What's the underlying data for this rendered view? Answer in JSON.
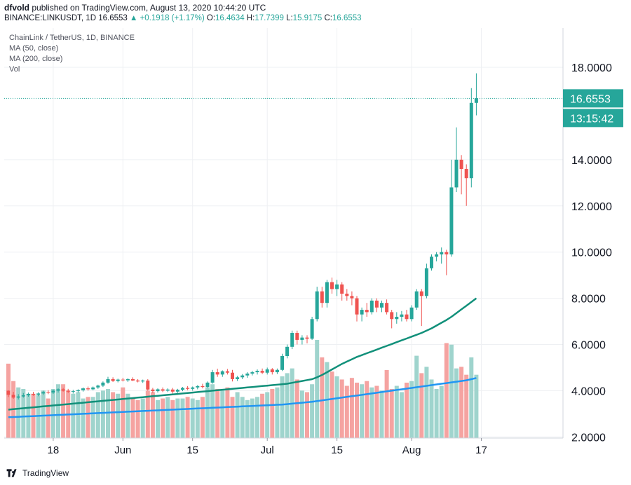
{
  "header": {
    "user": "dfvold",
    "published": "published on TradingView.com, August 13, 2020 10:44:20 UTC",
    "symbol": "BINANCE:LINKUSDT, 1D",
    "last": "16.6553",
    "change": "+0.1918 (+1.17%)",
    "o_label": "O:",
    "o": "16.4634",
    "h_label": "H:",
    "h": "17.7399",
    "l_label": "L:",
    "l": "15.9175",
    "c_label": "C:",
    "c": "16.6553"
  },
  "legend": {
    "title": "ChainLink / TetherUS, 1D, BINANCE",
    "ma50": "MA (50, close)",
    "ma200": "MA (200, close)",
    "vol": "Vol"
  },
  "price_label": "16.6553",
  "countdown": "13:15:42",
  "footer": {
    "brand": "TradingView"
  },
  "colors": {
    "up": "#26a69a",
    "down": "#ef5350",
    "vol_up": "#9fd4cd",
    "vol_down": "#f5a3a1",
    "ma50": "#11907a",
    "ma200": "#2196f3",
    "grid": "#eef0f3",
    "axis_text": "#131722"
  },
  "chart_data": {
    "type": "candlestick",
    "title": "ChainLink / TetherUS, 1D, BINANCE",
    "y_ticks": [
      "2.0000",
      "4.0000",
      "6.0000",
      "8.0000",
      "10.0000",
      "12.0000",
      "14.0000",
      "18.0000"
    ],
    "y_tick_values": [
      2,
      4,
      6,
      8,
      10,
      12,
      14,
      18
    ],
    "x_ticks": [
      "18",
      "Jun",
      "15",
      "Jul",
      "15",
      "Aug",
      "17"
    ],
    "x_tick_index": [
      9,
      23,
      37,
      52,
      66,
      81,
      95
    ],
    "ylim": [
      1.95,
      19.7
    ],
    "start_date": "2020-05-09",
    "candles": [
      [
        4.0,
        4.02,
        3.72,
        3.82
      ],
      [
        3.82,
        3.95,
        3.65,
        3.7
      ],
      [
        3.7,
        3.85,
        3.62,
        3.75
      ],
      [
        3.75,
        3.9,
        3.7,
        3.8
      ],
      [
        3.8,
        3.92,
        3.74,
        3.86
      ],
      [
        3.86,
        3.95,
        3.78,
        3.82
      ],
      [
        3.82,
        3.93,
        3.76,
        3.88
      ],
      [
        3.88,
        4.0,
        3.82,
        3.94
      ],
      [
        3.94,
        4.02,
        3.85,
        3.92
      ],
      [
        3.92,
        4.05,
        3.86,
        4.0
      ],
      [
        4.0,
        4.1,
        3.92,
        4.06
      ],
      [
        4.06,
        4.12,
        3.96,
        4.0
      ],
      [
        4.0,
        4.08,
        3.9,
        3.96
      ],
      [
        3.96,
        4.04,
        3.88,
        3.98
      ],
      [
        3.98,
        4.06,
        3.92,
        4.02
      ],
      [
        4.02,
        4.14,
        3.96,
        4.1
      ],
      [
        4.1,
        4.18,
        4.0,
        4.06
      ],
      [
        4.06,
        4.18,
        4.02,
        4.14
      ],
      [
        4.14,
        4.26,
        4.08,
        4.22
      ],
      [
        4.22,
        4.4,
        4.16,
        4.35
      ],
      [
        4.35,
        4.6,
        4.3,
        4.5
      ],
      [
        4.5,
        4.58,
        4.38,
        4.42
      ],
      [
        4.42,
        4.52,
        4.36,
        4.48
      ],
      [
        4.48,
        4.56,
        4.4,
        4.45
      ],
      [
        4.45,
        4.54,
        4.38,
        4.5
      ],
      [
        4.5,
        4.58,
        4.42,
        4.44
      ],
      [
        4.44,
        4.5,
        4.36,
        4.4
      ],
      [
        4.4,
        4.48,
        4.34,
        4.44
      ],
      [
        4.44,
        4.5,
        4.0,
        4.05
      ],
      [
        4.05,
        4.12,
        3.9,
        3.98
      ],
      [
        3.98,
        4.1,
        3.92,
        4.06
      ],
      [
        4.06,
        4.14,
        3.94,
        4.0
      ],
      [
        4.0,
        4.1,
        3.94,
        4.05
      ],
      [
        4.05,
        4.12,
        3.88,
        3.96
      ],
      [
        3.96,
        4.08,
        3.9,
        4.04
      ],
      [
        4.04,
        4.16,
        3.98,
        4.12
      ],
      [
        4.12,
        4.2,
        4.02,
        4.08
      ],
      [
        4.08,
        4.18,
        4.0,
        4.14
      ],
      [
        4.14,
        4.24,
        4.06,
        4.2
      ],
      [
        4.2,
        4.3,
        4.1,
        4.16
      ],
      [
        4.16,
        4.4,
        4.12,
        4.35
      ],
      [
        4.35,
        4.9,
        4.3,
        4.8
      ],
      [
        4.8,
        4.95,
        4.6,
        4.7
      ],
      [
        4.7,
        4.88,
        4.6,
        4.84
      ],
      [
        4.84,
        4.94,
        4.7,
        4.78
      ],
      [
        4.78,
        4.9,
        4.4,
        4.5
      ],
      [
        4.5,
        4.64,
        4.42,
        4.58
      ],
      [
        4.58,
        4.72,
        4.5,
        4.66
      ],
      [
        4.66,
        4.8,
        4.56,
        4.74
      ],
      [
        4.74,
        4.86,
        4.66,
        4.8
      ],
      [
        4.8,
        4.92,
        4.7,
        4.86
      ],
      [
        4.86,
        4.96,
        4.72,
        4.78
      ],
      [
        4.78,
        5.0,
        4.7,
        4.92
      ],
      [
        4.92,
        4.98,
        4.7,
        4.8
      ],
      [
        4.8,
        4.96,
        4.72,
        4.9
      ],
      [
        4.9,
        5.6,
        4.85,
        5.5
      ],
      [
        5.5,
        6.0,
        5.4,
        5.9
      ],
      [
        5.9,
        6.6,
        5.8,
        6.5
      ],
      [
        6.5,
        6.6,
        6.0,
        6.2
      ],
      [
        6.2,
        6.4,
        6.0,
        6.3
      ],
      [
        6.3,
        6.4,
        6.05,
        6.25
      ],
      [
        6.25,
        7.2,
        6.2,
        7.1
      ],
      [
        7.1,
        8.5,
        7.0,
        8.3
      ],
      [
        8.3,
        8.5,
        7.6,
        7.8
      ],
      [
        7.8,
        8.8,
        7.6,
        8.7
      ],
      [
        8.7,
        8.9,
        8.2,
        8.4
      ],
      [
        8.4,
        8.8,
        8.1,
        8.6
      ],
      [
        8.6,
        8.7,
        7.9,
        8.2
      ],
      [
        8.2,
        8.4,
        7.9,
        8.1
      ],
      [
        8.1,
        8.3,
        7.7,
        8.0
      ],
      [
        8.0,
        8.1,
        7.0,
        7.3
      ],
      [
        7.3,
        7.6,
        7.0,
        7.5
      ],
      [
        7.5,
        7.8,
        7.2,
        7.4
      ],
      [
        7.4,
        8.0,
        7.3,
        7.9
      ],
      [
        7.9,
        8.0,
        7.4,
        7.6
      ],
      [
        7.6,
        7.9,
        7.4,
        7.8
      ],
      [
        7.8,
        7.95,
        7.3,
        7.4
      ],
      [
        7.4,
        7.5,
        6.7,
        7.1
      ],
      [
        7.1,
        7.4,
        6.9,
        7.2
      ],
      [
        7.2,
        7.45,
        7.0,
        7.3
      ],
      [
        7.3,
        7.5,
        7.0,
        7.1
      ],
      [
        7.1,
        7.7,
        7.0,
        7.6
      ],
      [
        7.6,
        8.4,
        7.5,
        8.3
      ],
      [
        8.3,
        8.4,
        6.8,
        8.1
      ],
      [
        8.1,
        9.5,
        8.0,
        9.3
      ],
      [
        9.3,
        9.9,
        9.2,
        9.8
      ],
      [
        9.8,
        10.0,
        9.6,
        9.9
      ],
      [
        9.9,
        10.2,
        9.5,
        10.0
      ],
      [
        10.0,
        10.1,
        9.0,
        9.9
      ],
      [
        9.9,
        14.0,
        9.8,
        12.8
      ],
      [
        12.8,
        15.4,
        12.6,
        14.0
      ],
      [
        14.0,
        14.2,
        12.5,
        13.6
      ],
      [
        13.6,
        13.8,
        12.0,
        13.2
      ],
      [
        13.2,
        17.1,
        12.8,
        16.46
      ],
      [
        16.46,
        17.74,
        15.92,
        16.66
      ]
    ],
    "volume": [
      4.7,
      3.6,
      3.2,
      3.1,
      2.8,
      2.8,
      2.7,
      3.0,
      2.5,
      3.1,
      3.4,
      3.4,
      3.0,
      2.8,
      2.9,
      2.5,
      2.6,
      2.6,
      2.9,
      3.0,
      3.1,
      2.9,
      2.8,
      3.2,
      2.8,
      2.5,
      2.4,
      2.5,
      3.0,
      2.9,
      2.4,
      2.5,
      2.6,
      2.4,
      2.5,
      2.5,
      2.6,
      2.5,
      2.4,
      2.6,
      3.2,
      3.4,
      3.1,
      3.0,
      3.2,
      2.6,
      2.9,
      2.6,
      2.4,
      2.5,
      2.6,
      2.8,
      2.9,
      3.1,
      3.2,
      3.9,
      4.1,
      4.4,
      3.7,
      3.0,
      2.9,
      3.4,
      6.2,
      5.1,
      4.8,
      4.2,
      3.9,
      3.7,
      3.3,
      3.8,
      3.5,
      3.4,
      3.6,
      3.2,
      3.3,
      3.0,
      4.3,
      3.1,
      3.3,
      2.9,
      3.5,
      3.6,
      5.2,
      4.1,
      4.5,
      3.7,
      3.1,
      3.3,
      6.0,
      5.9,
      4.4,
      4.5,
      4.0,
      5.1,
      4.0
    ],
    "ma50": [
      3.18,
      3.2,
      3.22,
      3.24,
      3.26,
      3.28,
      3.3,
      3.32,
      3.34,
      3.36,
      3.38,
      3.4,
      3.42,
      3.44,
      3.46,
      3.48,
      3.5,
      3.52,
      3.54,
      3.56,
      3.58,
      3.6,
      3.62,
      3.64,
      3.66,
      3.68,
      3.7,
      3.72,
      3.74,
      3.76,
      3.78,
      3.8,
      3.82,
      3.84,
      3.86,
      3.88,
      3.9,
      3.92,
      3.94,
      3.96,
      3.98,
      4.0,
      4.02,
      4.04,
      4.06,
      4.08,
      4.1,
      4.12,
      4.14,
      4.16,
      4.18,
      4.2,
      4.22,
      4.24,
      4.26,
      4.28,
      4.3,
      4.34,
      4.38,
      4.42,
      4.46,
      4.5,
      4.58,
      4.68,
      4.8,
      4.92,
      5.04,
      5.16,
      5.26,
      5.36,
      5.46,
      5.54,
      5.62,
      5.7,
      5.78,
      5.86,
      5.94,
      6.02,
      6.1,
      6.18,
      6.26,
      6.34,
      6.42,
      6.5,
      6.6,
      6.7,
      6.82,
      6.94,
      7.06,
      7.2,
      7.36,
      7.52,
      7.68,
      7.84,
      8.0
    ],
    "ma200": [
      2.85,
      2.86,
      2.87,
      2.88,
      2.89,
      2.9,
      2.91,
      2.92,
      2.93,
      2.94,
      2.95,
      2.96,
      2.97,
      2.98,
      2.99,
      3.0,
      3.01,
      3.02,
      3.03,
      3.04,
      3.05,
      3.06,
      3.07,
      3.08,
      3.09,
      3.1,
      3.11,
      3.12,
      3.13,
      3.14,
      3.15,
      3.16,
      3.17,
      3.18,
      3.19,
      3.2,
      3.21,
      3.22,
      3.23,
      3.24,
      3.25,
      3.26,
      3.27,
      3.28,
      3.29,
      3.3,
      3.31,
      3.32,
      3.33,
      3.34,
      3.35,
      3.36,
      3.37,
      3.38,
      3.39,
      3.4,
      3.42,
      3.44,
      3.46,
      3.48,
      3.5,
      3.52,
      3.55,
      3.58,
      3.61,
      3.64,
      3.67,
      3.7,
      3.73,
      3.76,
      3.79,
      3.82,
      3.85,
      3.88,
      3.91,
      3.94,
      3.97,
      4.0,
      4.03,
      4.06,
      4.09,
      4.12,
      4.15,
      4.18,
      4.21,
      4.24,
      4.27,
      4.3,
      4.33,
      4.36,
      4.39,
      4.42,
      4.45,
      4.5,
      4.55
    ]
  }
}
